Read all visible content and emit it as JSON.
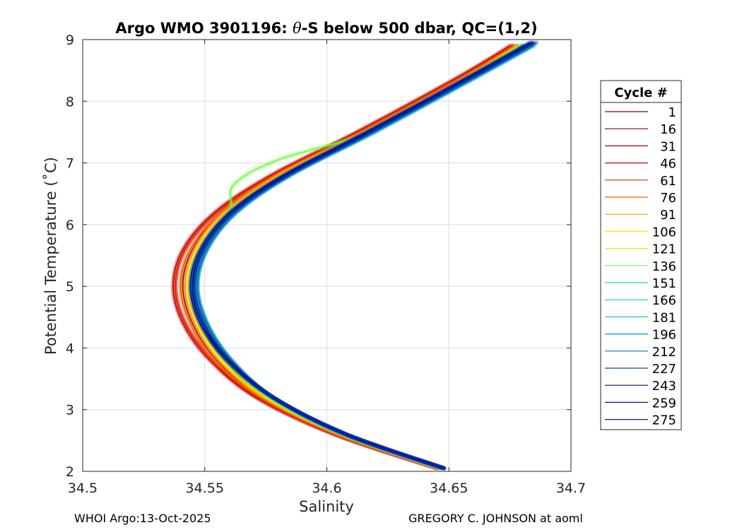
{
  "chart_data": {
    "type": "line",
    "title_prefix": "Argo WMO 3901196: ",
    "title_symbol": "θ",
    "title_suffix": "-S below 500 dbar,  QC=(1,2)",
    "xlabel": "Salinity",
    "ylabel": "Potential Temperature (˚C)",
    "xlim": [
      34.5,
      34.7
    ],
    "ylim": [
      2,
      9
    ],
    "xticks": [
      34.5,
      34.55,
      34.6,
      34.65,
      34.7
    ],
    "xtick_labels": [
      "34.5",
      "34.55",
      "34.6",
      "34.65",
      "34.7"
    ],
    "yticks": [
      2,
      3,
      4,
      5,
      6,
      7,
      8,
      9
    ],
    "ytick_labels": [
      "2",
      "3",
      "4",
      "5",
      "6",
      "7",
      "8",
      "9"
    ],
    "grid": true,
    "legend_title": "Cycle #",
    "legend_position": "outside-right",
    "series": [
      {
        "name": "1",
        "color": "#7a0000",
        "salinity": [
          34.647,
          34.605,
          34.575,
          34.558,
          34.548,
          34.545,
          34.549,
          34.561,
          34.584,
          34.618,
          34.66,
          34.68
        ],
        "temperature": [
          2.05,
          2.6,
          3.2,
          3.8,
          4.4,
          5.0,
          5.6,
          6.2,
          6.8,
          7.5,
          8.4,
          8.9
        ]
      },
      {
        "name": "16",
        "color": "#8c0000",
        "salinity": [
          34.646,
          34.604,
          34.573,
          34.555,
          34.545,
          34.541,
          34.545,
          34.557,
          34.58,
          34.615,
          34.657,
          34.678
        ],
        "temperature": [
          2.05,
          2.6,
          3.2,
          3.8,
          4.4,
          5.0,
          5.6,
          6.2,
          6.8,
          7.5,
          8.4,
          8.9
        ]
      },
      {
        "name": "31",
        "color": "#a30000",
        "salinity": [
          34.645,
          34.603,
          34.571,
          34.553,
          34.542,
          34.538,
          34.542,
          34.555,
          34.578,
          34.613,
          34.655,
          34.676
        ],
        "temperature": [
          2.05,
          2.6,
          3.2,
          3.8,
          4.4,
          5.0,
          5.6,
          6.2,
          6.8,
          7.5,
          8.4,
          8.9
        ]
      },
      {
        "name": "46",
        "color": "#c40000",
        "salinity": [
          34.645,
          34.603,
          34.571,
          34.552,
          34.541,
          34.537,
          34.541,
          34.554,
          34.577,
          34.612,
          34.654,
          34.675
        ],
        "temperature": [
          2.05,
          2.6,
          3.2,
          3.8,
          4.4,
          5.0,
          5.6,
          6.2,
          6.8,
          7.5,
          8.4,
          8.9
        ]
      },
      {
        "name": "61",
        "color": "#e62400",
        "salinity": [
          34.645,
          34.604,
          34.572,
          34.553,
          34.542,
          34.538,
          34.542,
          34.555,
          34.578,
          34.613,
          34.655,
          34.676
        ],
        "temperature": [
          2.05,
          2.6,
          3.2,
          3.8,
          4.4,
          5.0,
          5.6,
          6.2,
          6.8,
          7.5,
          8.4,
          8.9
        ]
      },
      {
        "name": "76",
        "color": "#ff5a00",
        "salinity": [
          34.645,
          34.604,
          34.573,
          34.554,
          34.544,
          34.54,
          34.544,
          34.557,
          34.579,
          34.614,
          34.656,
          34.677
        ],
        "temperature": [
          2.05,
          2.6,
          3.2,
          3.8,
          4.4,
          5.0,
          5.6,
          6.2,
          6.8,
          7.5,
          8.4,
          8.9
        ]
      },
      {
        "name": "91",
        "color": "#ff9a00",
        "salinity": [
          34.646,
          34.605,
          34.574,
          34.556,
          34.546,
          34.542,
          34.546,
          34.558,
          34.58,
          34.615,
          34.657,
          34.678
        ],
        "temperature": [
          2.05,
          2.6,
          3.2,
          3.8,
          4.4,
          5.0,
          5.6,
          6.2,
          6.8,
          7.5,
          8.4,
          8.9
        ]
      },
      {
        "name": "106",
        "color": "#ffe600",
        "salinity": [
          34.646,
          34.606,
          34.575,
          34.557,
          34.547,
          34.543,
          34.547,
          34.559,
          34.581,
          34.616,
          34.658,
          34.679
        ],
        "temperature": [
          2.05,
          2.6,
          3.2,
          3.8,
          4.4,
          5.0,
          5.6,
          6.2,
          6.8,
          7.5,
          8.4,
          8.9
        ]
      },
      {
        "name": "121",
        "color": "#b8ff00",
        "salinity": [
          34.647,
          34.607,
          34.576,
          34.558,
          34.548,
          34.544,
          34.548,
          34.56,
          34.582,
          34.616,
          34.658,
          34.679
        ],
        "temperature": [
          2.05,
          2.6,
          3.2,
          3.8,
          4.4,
          5.0,
          5.6,
          6.2,
          6.8,
          7.5,
          8.4,
          8.9
        ]
      },
      {
        "name": "136",
        "color": "#6aff3a",
        "salinity": [
          34.647,
          34.607,
          34.577,
          34.559,
          34.549,
          34.545,
          34.549,
          34.56,
          34.562,
          34.58,
          34.617,
          34.659,
          34.68
        ],
        "temperature": [
          2.05,
          2.6,
          3.2,
          3.8,
          4.4,
          5.0,
          5.6,
          6.2,
          6.65,
          7.05,
          7.5,
          8.4,
          8.9
        ]
      },
      {
        "name": "151",
        "color": "#1fe37a",
        "salinity": [
          34.647,
          34.607,
          34.577,
          34.559,
          34.549,
          34.545,
          34.549,
          34.561,
          34.583,
          34.617,
          34.659,
          34.68
        ],
        "temperature": [
          2.05,
          2.6,
          3.2,
          3.8,
          4.4,
          5.0,
          5.6,
          6.2,
          6.8,
          7.5,
          8.4,
          8.9
        ]
      },
      {
        "name": "166",
        "color": "#00d6b0",
        "salinity": [
          34.647,
          34.607,
          34.577,
          34.56,
          34.55,
          34.546,
          34.55,
          34.562,
          34.584,
          34.618,
          34.66,
          34.682
        ],
        "temperature": [
          2.05,
          2.6,
          3.2,
          3.8,
          4.4,
          5.0,
          5.6,
          6.2,
          6.8,
          7.5,
          8.4,
          8.9
        ]
      },
      {
        "name": "181",
        "color": "#00c8e6",
        "salinity": [
          34.647,
          34.607,
          34.578,
          34.561,
          34.551,
          34.547,
          34.551,
          34.563,
          34.585,
          34.619,
          34.661,
          34.684
        ],
        "temperature": [
          2.05,
          2.6,
          3.2,
          3.8,
          4.4,
          5.0,
          5.6,
          6.2,
          6.8,
          7.5,
          8.4,
          8.9
        ]
      },
      {
        "name": "196",
        "color": "#009ec8",
        "salinity": [
          34.647,
          34.607,
          34.578,
          34.561,
          34.551,
          34.547,
          34.551,
          34.563,
          34.585,
          34.62,
          34.662,
          34.685
        ],
        "temperature": [
          2.05,
          2.6,
          3.2,
          3.8,
          4.4,
          5.0,
          5.6,
          6.2,
          6.8,
          7.5,
          8.4,
          8.9
        ]
      },
      {
        "name": "212",
        "color": "#0074b8",
        "salinity": [
          34.648,
          34.608,
          34.578,
          34.561,
          34.551,
          34.547,
          34.551,
          34.563,
          34.585,
          34.619,
          34.661,
          34.686
        ],
        "temperature": [
          2.05,
          2.6,
          3.2,
          3.8,
          4.4,
          5.0,
          5.6,
          6.2,
          6.8,
          7.5,
          8.4,
          8.95
        ]
      },
      {
        "name": "227",
        "color": "#0046b0",
        "salinity": [
          34.648,
          34.608,
          34.578,
          34.56,
          34.55,
          34.546,
          34.55,
          34.562,
          34.584,
          34.618,
          34.66,
          34.685
        ],
        "temperature": [
          2.05,
          2.6,
          3.2,
          3.8,
          4.4,
          5.0,
          5.6,
          6.2,
          6.8,
          7.5,
          8.4,
          8.95
        ]
      },
      {
        "name": "243",
        "color": "#000c70",
        "salinity": [
          34.648,
          34.608,
          34.578,
          34.56,
          34.549,
          34.545,
          34.549,
          34.561,
          34.583,
          34.617,
          34.659,
          34.684
        ],
        "temperature": [
          2.05,
          2.6,
          3.2,
          3.8,
          4.4,
          5.0,
          5.6,
          6.2,
          6.8,
          7.5,
          8.4,
          8.95
        ]
      },
      {
        "name": "259",
        "color": "#001a9a",
        "salinity": [
          34.648,
          34.608,
          34.578,
          34.559,
          34.549,
          34.545,
          34.549,
          34.561,
          34.583,
          34.617,
          34.659,
          34.684
        ],
        "temperature": [
          2.05,
          2.6,
          3.2,
          3.8,
          4.4,
          5.0,
          5.6,
          6.2,
          6.8,
          7.5,
          8.4,
          8.95
        ]
      },
      {
        "name": "275",
        "color": "#0018a8",
        "salinity": [
          34.648,
          34.608,
          34.578,
          34.559,
          34.548,
          34.544,
          34.548,
          34.56,
          34.582,
          34.616,
          34.658,
          34.683
        ],
        "temperature": [
          2.05,
          2.6,
          3.2,
          3.8,
          4.4,
          5.0,
          5.6,
          6.2,
          6.8,
          7.5,
          8.4,
          8.95
        ]
      }
    ]
  },
  "footer": {
    "left": "WHOI Argo:13-Oct-2025",
    "right": "GREGORY C. JOHNSON at aoml"
  }
}
